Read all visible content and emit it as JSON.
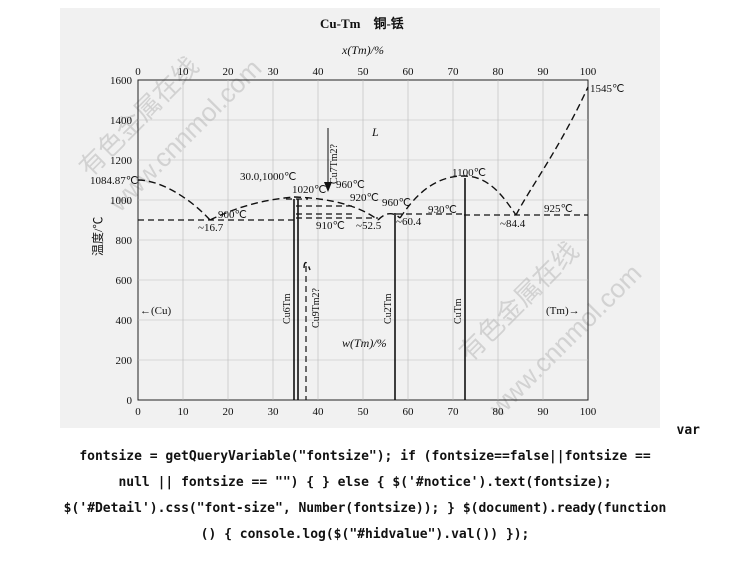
{
  "title": "Cu-Tm　铜-铥",
  "top_axis": {
    "label": "x(Tm)/%",
    "ticks": [
      "0",
      "10",
      "20",
      "30",
      "40",
      "50",
      "60",
      "70",
      "80",
      "90",
      "100"
    ]
  },
  "bottom_axis": {
    "label": "w(Tm)/%",
    "ticks": [
      "0",
      "10",
      "20",
      "30",
      "40",
      "50",
      "60",
      "70",
      "80",
      "90",
      "100"
    ],
    "left_element": "Cu",
    "right_element": "Tm"
  },
  "y_axis": {
    "label": "温度/℃",
    "ticks": [
      "0",
      "200",
      "400",
      "600",
      "800",
      "1000",
      "1200",
      "1400",
      "1600"
    ]
  },
  "annotations": {
    "cu_melt": "1084.87℃",
    "tm_melt": "1545℃",
    "liquid": "L",
    "eut1_comp": "~16.7",
    "eut1_temp": "900℃",
    "cong1": "30.0,1000℃",
    "cong1_temp": "1020℃",
    "phase_960a": "960℃",
    "phase_920": "920℃",
    "phase_910": "910℃",
    "eut2_comp": "~52.5",
    "phase_960b": "960℃",
    "eut3_comp": "~60.4",
    "phase_930": "930℃",
    "cong2": "1100℃",
    "eut4_comp": "~84.4",
    "eut4_temp": "925℃",
    "cu_phase": "←(Cu)",
    "tm_phase": "(Tm)→",
    "cu7tm2": "Cu7Tm2?",
    "cu6tm": "Cu6Tm",
    "cu9tm2": "Cu9Tm2?",
    "cu2tm": "Cu2Tm",
    "cutm": "CuTm"
  },
  "watermarks": [
    "有色金属在线",
    "www.cnnmol.com"
  ],
  "code_lines": [
    "var",
    "fontsize = getQueryVariable(\"fontsize\"); if (fontsize==false||fontsize ==",
    "null || fontsize == \"\") { } else { $('#notice').text(fontsize);",
    "$('#Detail').css(\"font-size\", Number(fontsize)); } $(document).ready(function",
    "() { console.log($(\"#hidvalue\").val()) });"
  ]
}
